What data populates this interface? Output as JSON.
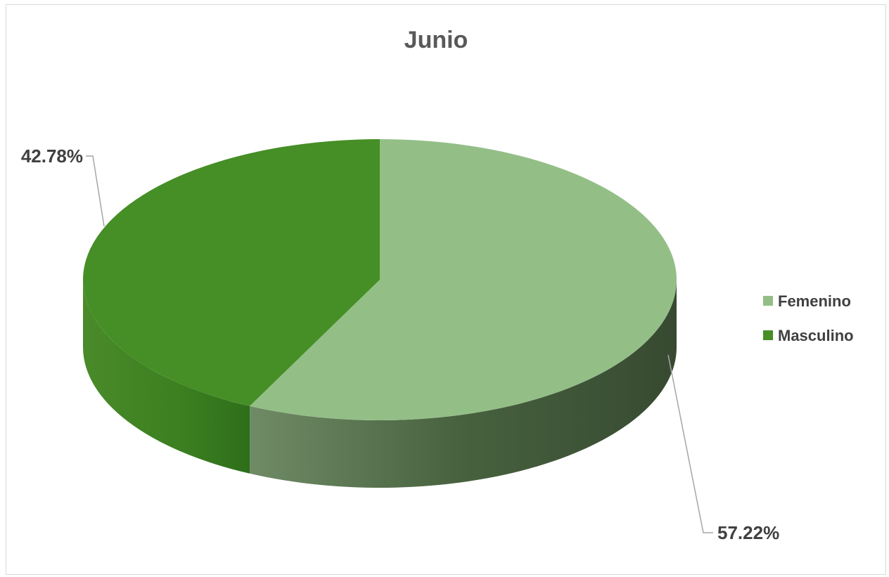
{
  "chart_data": {
    "type": "pie",
    "title": "Junio",
    "categories": [
      "Femenino",
      "Masculino"
    ],
    "values": [
      57.22,
      42.78
    ],
    "data_labels": [
      "57.22%",
      "42.78%"
    ],
    "colors": [
      "#93bf87",
      "#458f26"
    ],
    "legend_position": "right",
    "style": "3d"
  }
}
